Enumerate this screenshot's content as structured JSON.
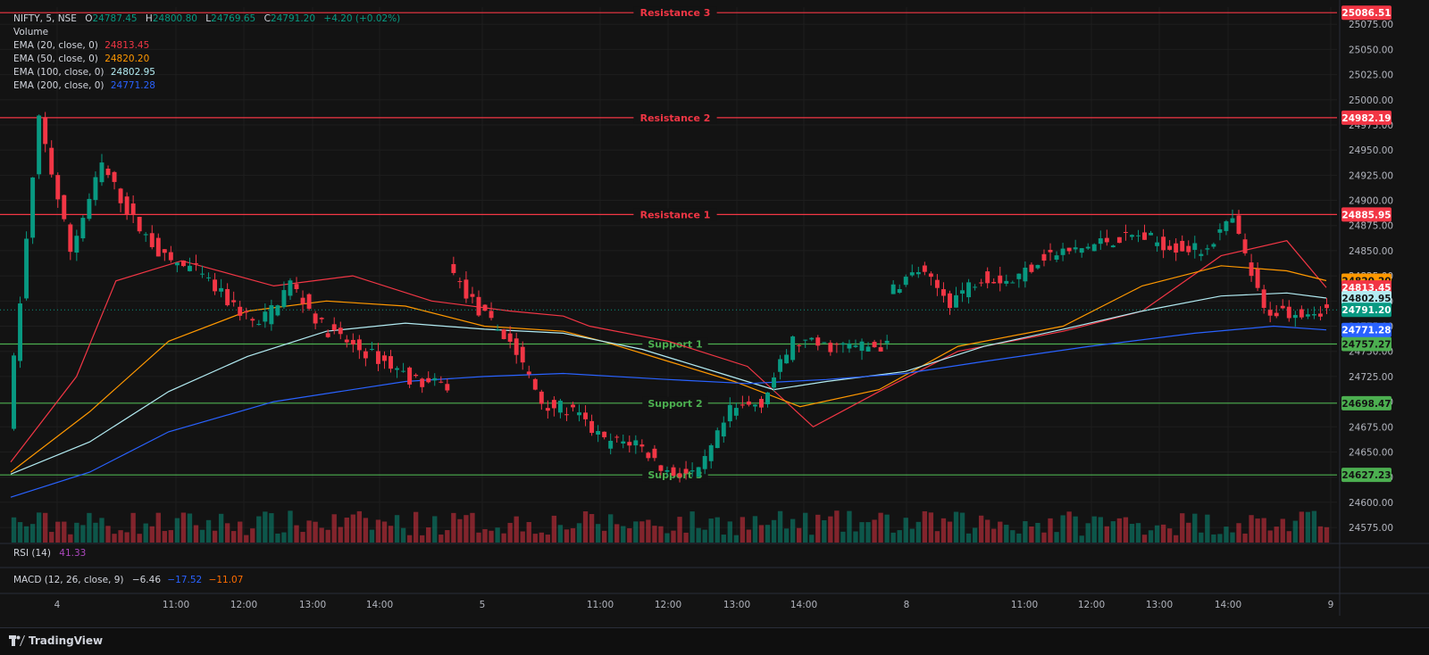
{
  "symbol": {
    "name": "NIFTY",
    "interval": "5",
    "exchange": "NSE"
  },
  "ohlc": {
    "o_label": "O",
    "o": "24787.45",
    "h_label": "H",
    "h": "24800.80",
    "l_label": "L",
    "l": "24769.65",
    "c_label": "C",
    "c": "24791.20",
    "change": "+4.20 (+0.02%)"
  },
  "legend": {
    "volume": "Volume",
    "ema20": {
      "label": "EMA (20, close, 0)",
      "value": "24813.45",
      "color": "#f23645"
    },
    "ema50": {
      "label": "EMA (50, close, 0)",
      "value": "24820.20",
      "color": "#ff9800"
    },
    "ema100": {
      "label": "EMA (100, close, 0)",
      "value": "24802.95",
      "color": "#b2ebf2"
    },
    "ema200": {
      "label": "EMA (200, close, 0)",
      "value": "24771.28",
      "color": "#2962ff"
    }
  },
  "rsi": {
    "label": "RSI (14)",
    "value": "41.33"
  },
  "macd": {
    "label": "MACD (12, 26, close, 9)",
    "macd": "−6.46",
    "signal": "−17.52",
    "hist": "−11.07"
  },
  "brand": "TradingView",
  "colors": {
    "up": "#089981",
    "down": "#f23645",
    "resistance": "#f23645",
    "support": "#4caf50",
    "bg": "#131313",
    "grid": "#1e1e1e"
  },
  "chart_data": {
    "type": "candlestick",
    "ylim": [
      24560,
      25092
    ],
    "y_ticks": [
      "24575.00",
      "24600.00",
      "24625.00",
      "24650.00",
      "24675.00",
      "24700.00",
      "24725.00",
      "24750.00",
      "24775.00",
      "24800.00",
      "24825.00",
      "24850.00",
      "24875.00",
      "24900.00",
      "24925.00",
      "24950.00",
      "24975.00",
      "25000.00",
      "25025.00",
      "25050.00",
      "25075.00"
    ],
    "x_ticks": [
      "4",
      "11:00",
      "12:00",
      "13:00",
      "14:00",
      "5",
      "11:00",
      "12:00",
      "13:00",
      "14:00",
      "8",
      "11:00",
      "12:00",
      "13:00",
      "14:00",
      "9"
    ],
    "levels": [
      {
        "name": "Resistance 3",
        "value": 25086.51,
        "kind": "resistance",
        "label": "25086.51"
      },
      {
        "name": "Resistance 2",
        "value": 24982.19,
        "kind": "resistance",
        "label": "24982.19"
      },
      {
        "name": "Resistance 1",
        "value": 24885.95,
        "kind": "resistance",
        "label": "24885.95"
      },
      {
        "name": "Support 1",
        "value": 24757.27,
        "kind": "support",
        "label": "24757.27"
      },
      {
        "name": "Support 2",
        "value": 24698.47,
        "kind": "support",
        "label": "24698.47"
      },
      {
        "name": "Support 3",
        "value": 24627.23,
        "kind": "support",
        "label": "24627.23"
      }
    ],
    "price_tags": [
      {
        "label": "24820.20",
        "value": 24820.2,
        "bg": "#ff9800",
        "fg": "#131313"
      },
      {
        "label": "24813.45",
        "value": 24813.45,
        "bg": "#f23645",
        "fg": "#ffffff"
      },
      {
        "label": "24802.95",
        "value": 24802.95,
        "bg": "#b2ebf2",
        "fg": "#131313"
      },
      {
        "label": "24791.20",
        "value": 24791.2,
        "bg": "#089981",
        "fg": "#ffffff"
      },
      {
        "label": "24771.28",
        "value": 24771.28,
        "bg": "#2962ff",
        "fg": "#ffffff"
      }
    ],
    "last_price": 24791.2,
    "days": [
      {
        "name": "4",
        "segments": [
          [
            24680,
            24980,
            24850
          ],
          [
            24850,
            24935,
            24880
          ],
          [
            24880,
            24842,
            24830
          ],
          [
            24830,
            24800,
            24775
          ],
          [
            24775,
            24818,
            24775
          ],
          [
            24775,
            24755,
            24740
          ],
          [
            24740,
            24720,
            24715
          ]
        ]
      },
      {
        "name": "5",
        "segments": [
          [
            24835,
            24790,
            24760
          ],
          [
            24760,
            24700,
            24690
          ],
          [
            24690,
            24660,
            24660
          ],
          [
            24660,
            24630,
            24628
          ],
          [
            24628,
            24690,
            24700
          ],
          [
            24700,
            24760,
            24755
          ],
          [
            24755,
            24755,
            24755
          ]
        ]
      },
      {
        "name": "8",
        "segments": [
          [
            24810,
            24830,
            24800
          ],
          [
            24800,
            24825,
            24820
          ],
          [
            24820,
            24845,
            24850
          ],
          [
            24850,
            24860,
            24865
          ],
          [
            24865,
            24855,
            24850
          ],
          [
            24850,
            24880,
            24790
          ],
          [
            24790,
            24790,
            24791.2
          ]
        ]
      }
    ],
    "ema_tracks": {
      "ema20": [
        [
          0,
          24640
        ],
        [
          0.05,
          24725
        ],
        [
          0.08,
          24820
        ],
        [
          0.13,
          24840
        ],
        [
          0.2,
          24815
        ],
        [
          0.26,
          24825
        ],
        [
          0.32,
          24800
        ],
        [
          0.38,
          24790
        ],
        [
          0.42,
          24785
        ],
        [
          0.44,
          24775
        ],
        [
          0.5,
          24760
        ],
        [
          0.56,
          24735
        ],
        [
          0.61,
          24675
        ],
        [
          0.66,
          24710
        ],
        [
          0.72,
          24750
        ],
        [
          0.8,
          24770
        ],
        [
          0.86,
          24790
        ],
        [
          0.92,
          24845
        ],
        [
          0.97,
          24860
        ],
        [
          1.0,
          24813.45
        ]
      ],
      "ema50": [
        [
          0,
          24630
        ],
        [
          0.06,
          24690
        ],
        [
          0.12,
          24760
        ],
        [
          0.18,
          24790
        ],
        [
          0.24,
          24800
        ],
        [
          0.3,
          24795
        ],
        [
          0.36,
          24775
        ],
        [
          0.42,
          24770
        ],
        [
          0.45,
          24760
        ],
        [
          0.5,
          24740
        ],
        [
          0.55,
          24720
        ],
        [
          0.6,
          24695
        ],
        [
          0.66,
          24712
        ],
        [
          0.72,
          24755
        ],
        [
          0.8,
          24775
        ],
        [
          0.86,
          24815
        ],
        [
          0.92,
          24835
        ],
        [
          0.97,
          24830
        ],
        [
          1.0,
          24820.2
        ]
      ],
      "ema100": [
        [
          0,
          24628
        ],
        [
          0.06,
          24660
        ],
        [
          0.12,
          24710
        ],
        [
          0.18,
          24745
        ],
        [
          0.24,
          24770
        ],
        [
          0.3,
          24778
        ],
        [
          0.36,
          24772
        ],
        [
          0.42,
          24768
        ],
        [
          0.48,
          24752
        ],
        [
          0.54,
          24728
        ],
        [
          0.58,
          24712
        ],
        [
          0.62,
          24720
        ],
        [
          0.68,
          24730
        ],
        [
          0.74,
          24755
        ],
        [
          0.8,
          24772
        ],
        [
          0.86,
          24790
        ],
        [
          0.92,
          24805
        ],
        [
          0.97,
          24808
        ],
        [
          1.0,
          24802.95
        ]
      ],
      "ema200": [
        [
          0,
          24605
        ],
        [
          0.06,
          24630
        ],
        [
          0.12,
          24670
        ],
        [
          0.2,
          24700
        ],
        [
          0.3,
          24720
        ],
        [
          0.36,
          24725
        ],
        [
          0.42,
          24728
        ],
        [
          0.5,
          24722
        ],
        [
          0.56,
          24718
        ],
        [
          0.62,
          24722
        ],
        [
          0.68,
          24728
        ],
        [
          0.74,
          24740
        ],
        [
          0.82,
          24755
        ],
        [
          0.9,
          24768
        ],
        [
          0.96,
          24775
        ],
        [
          1.0,
          24771.28
        ]
      ]
    }
  }
}
